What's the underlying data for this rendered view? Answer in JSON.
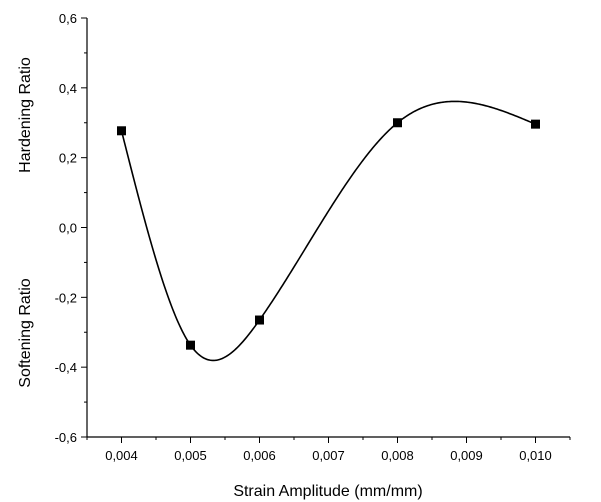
{
  "chart_data": {
    "type": "scatter",
    "title": "",
    "xlabel": "Strain Amplitude (mm/mm)",
    "ylabel_upper": "Hardening Ratio",
    "ylabel_lower": "Softening Ratio",
    "xlim": [
      0.0035,
      0.0105
    ],
    "ylim": [
      -0.6,
      0.6
    ],
    "x_ticks": [
      "0,004",
      "0,005",
      "0,006",
      "0,007",
      "0,008",
      "0,009",
      "0,010"
    ],
    "x_tick_values": [
      0.004,
      0.005,
      0.006,
      0.007,
      0.008,
      0.009,
      0.01
    ],
    "y_ticks": [
      "-0,6",
      "-0,4",
      "-0,2",
      "0,0",
      "0,2",
      "0,4",
      "0,6"
    ],
    "y_tick_values": [
      -0.6,
      -0.4,
      -0.2,
      0.0,
      0.2,
      0.4,
      0.6
    ],
    "series": [
      {
        "marker": "square",
        "line": "smooth spline",
        "color": "#000000",
        "x": [
          0.004,
          0.005,
          0.006,
          0.008,
          0.01
        ],
        "y": [
          0.277,
          -0.337,
          -0.265,
          0.3,
          0.296
        ]
      }
    ],
    "grid": false,
    "legend": "none"
  }
}
